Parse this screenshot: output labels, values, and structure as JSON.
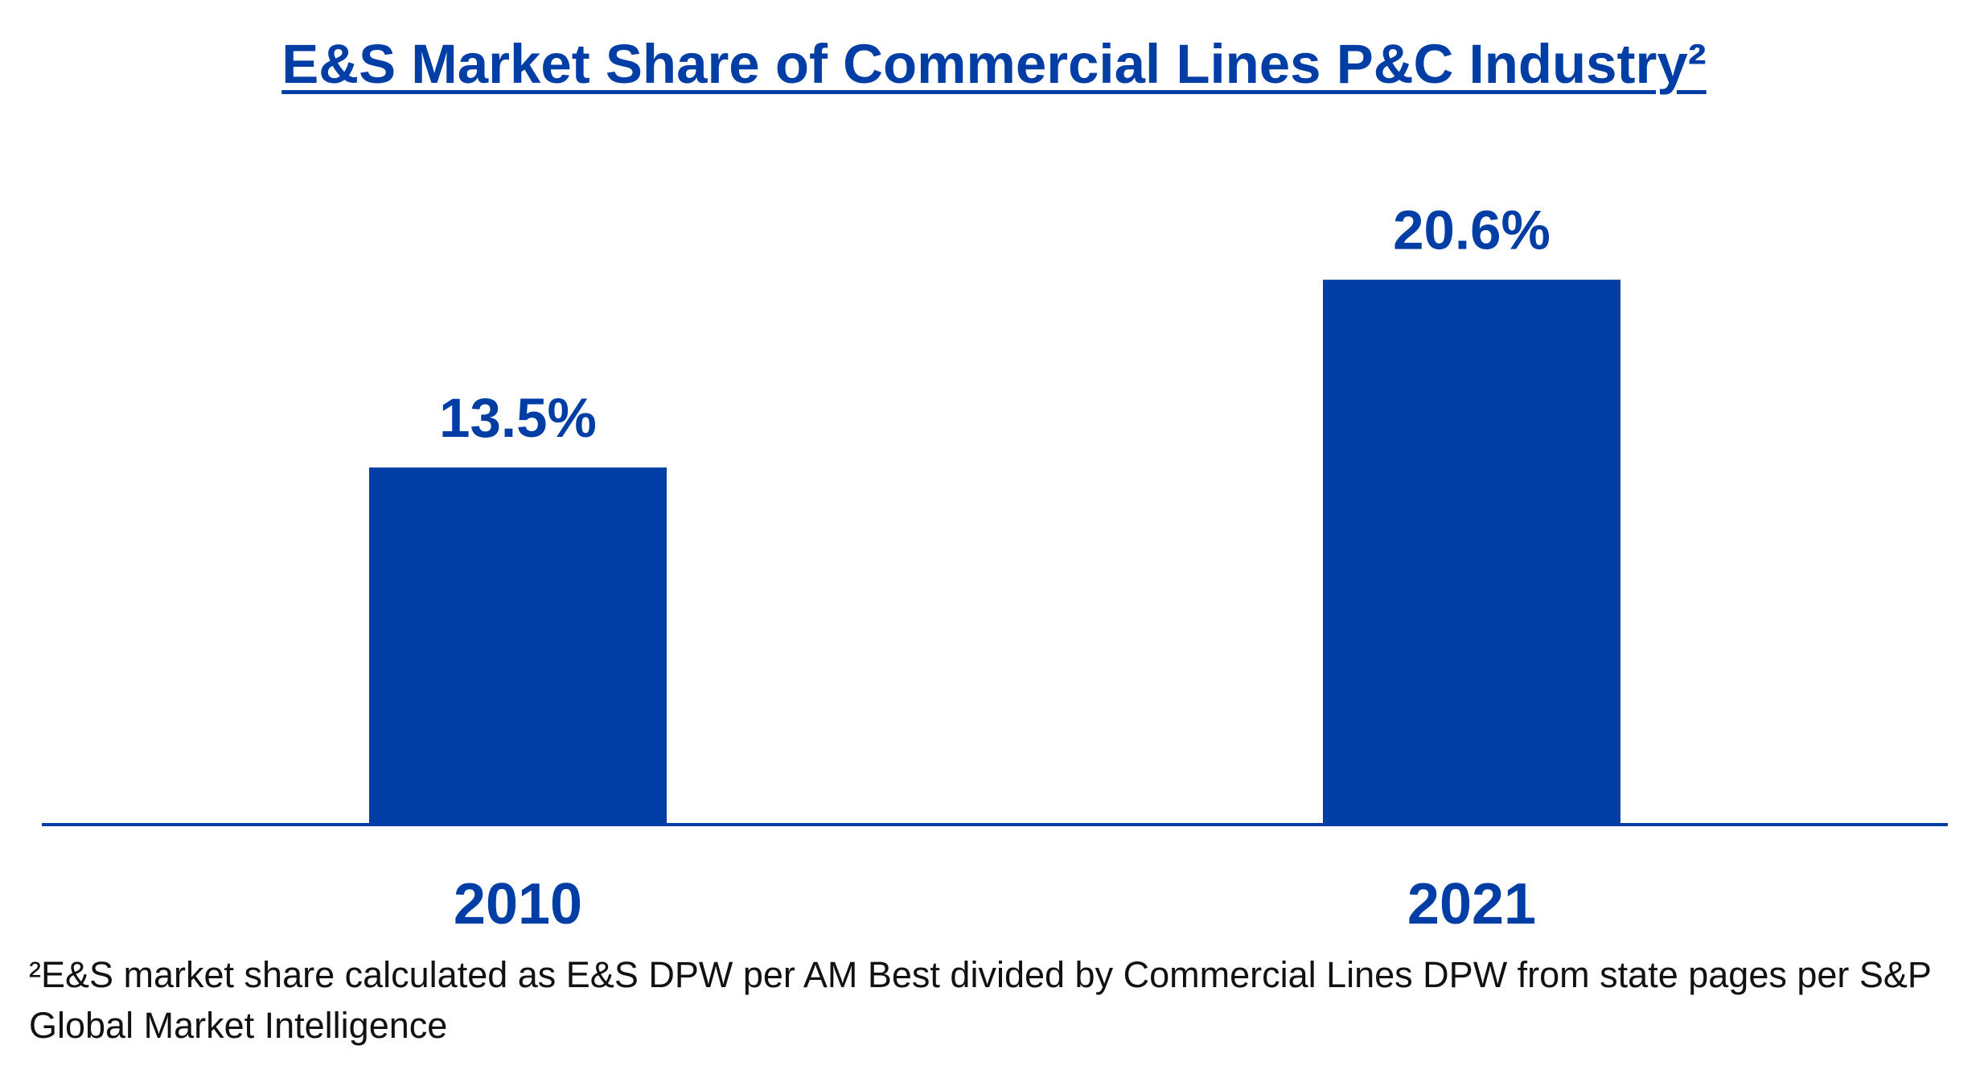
{
  "chart_data": {
    "type": "bar",
    "title": "E&S Market Share of Commercial Lines P&C Industry²",
    "categories": [
      "2010",
      "2021"
    ],
    "values": [
      13.5,
      20.6
    ],
    "data_labels": [
      "13.5%",
      "20.6%"
    ],
    "value_unit": "%",
    "xlabel": "",
    "ylabel": "",
    "ylim": [
      0,
      25
    ],
    "grid": false,
    "legend": "none",
    "bar_color": "#003da5",
    "axis_color": "#003da5"
  },
  "footnote": "²E&S market share calculated as E&S DPW per AM Best divided by Commercial Lines DPW from state pages per S&P Global Market Intelligence"
}
